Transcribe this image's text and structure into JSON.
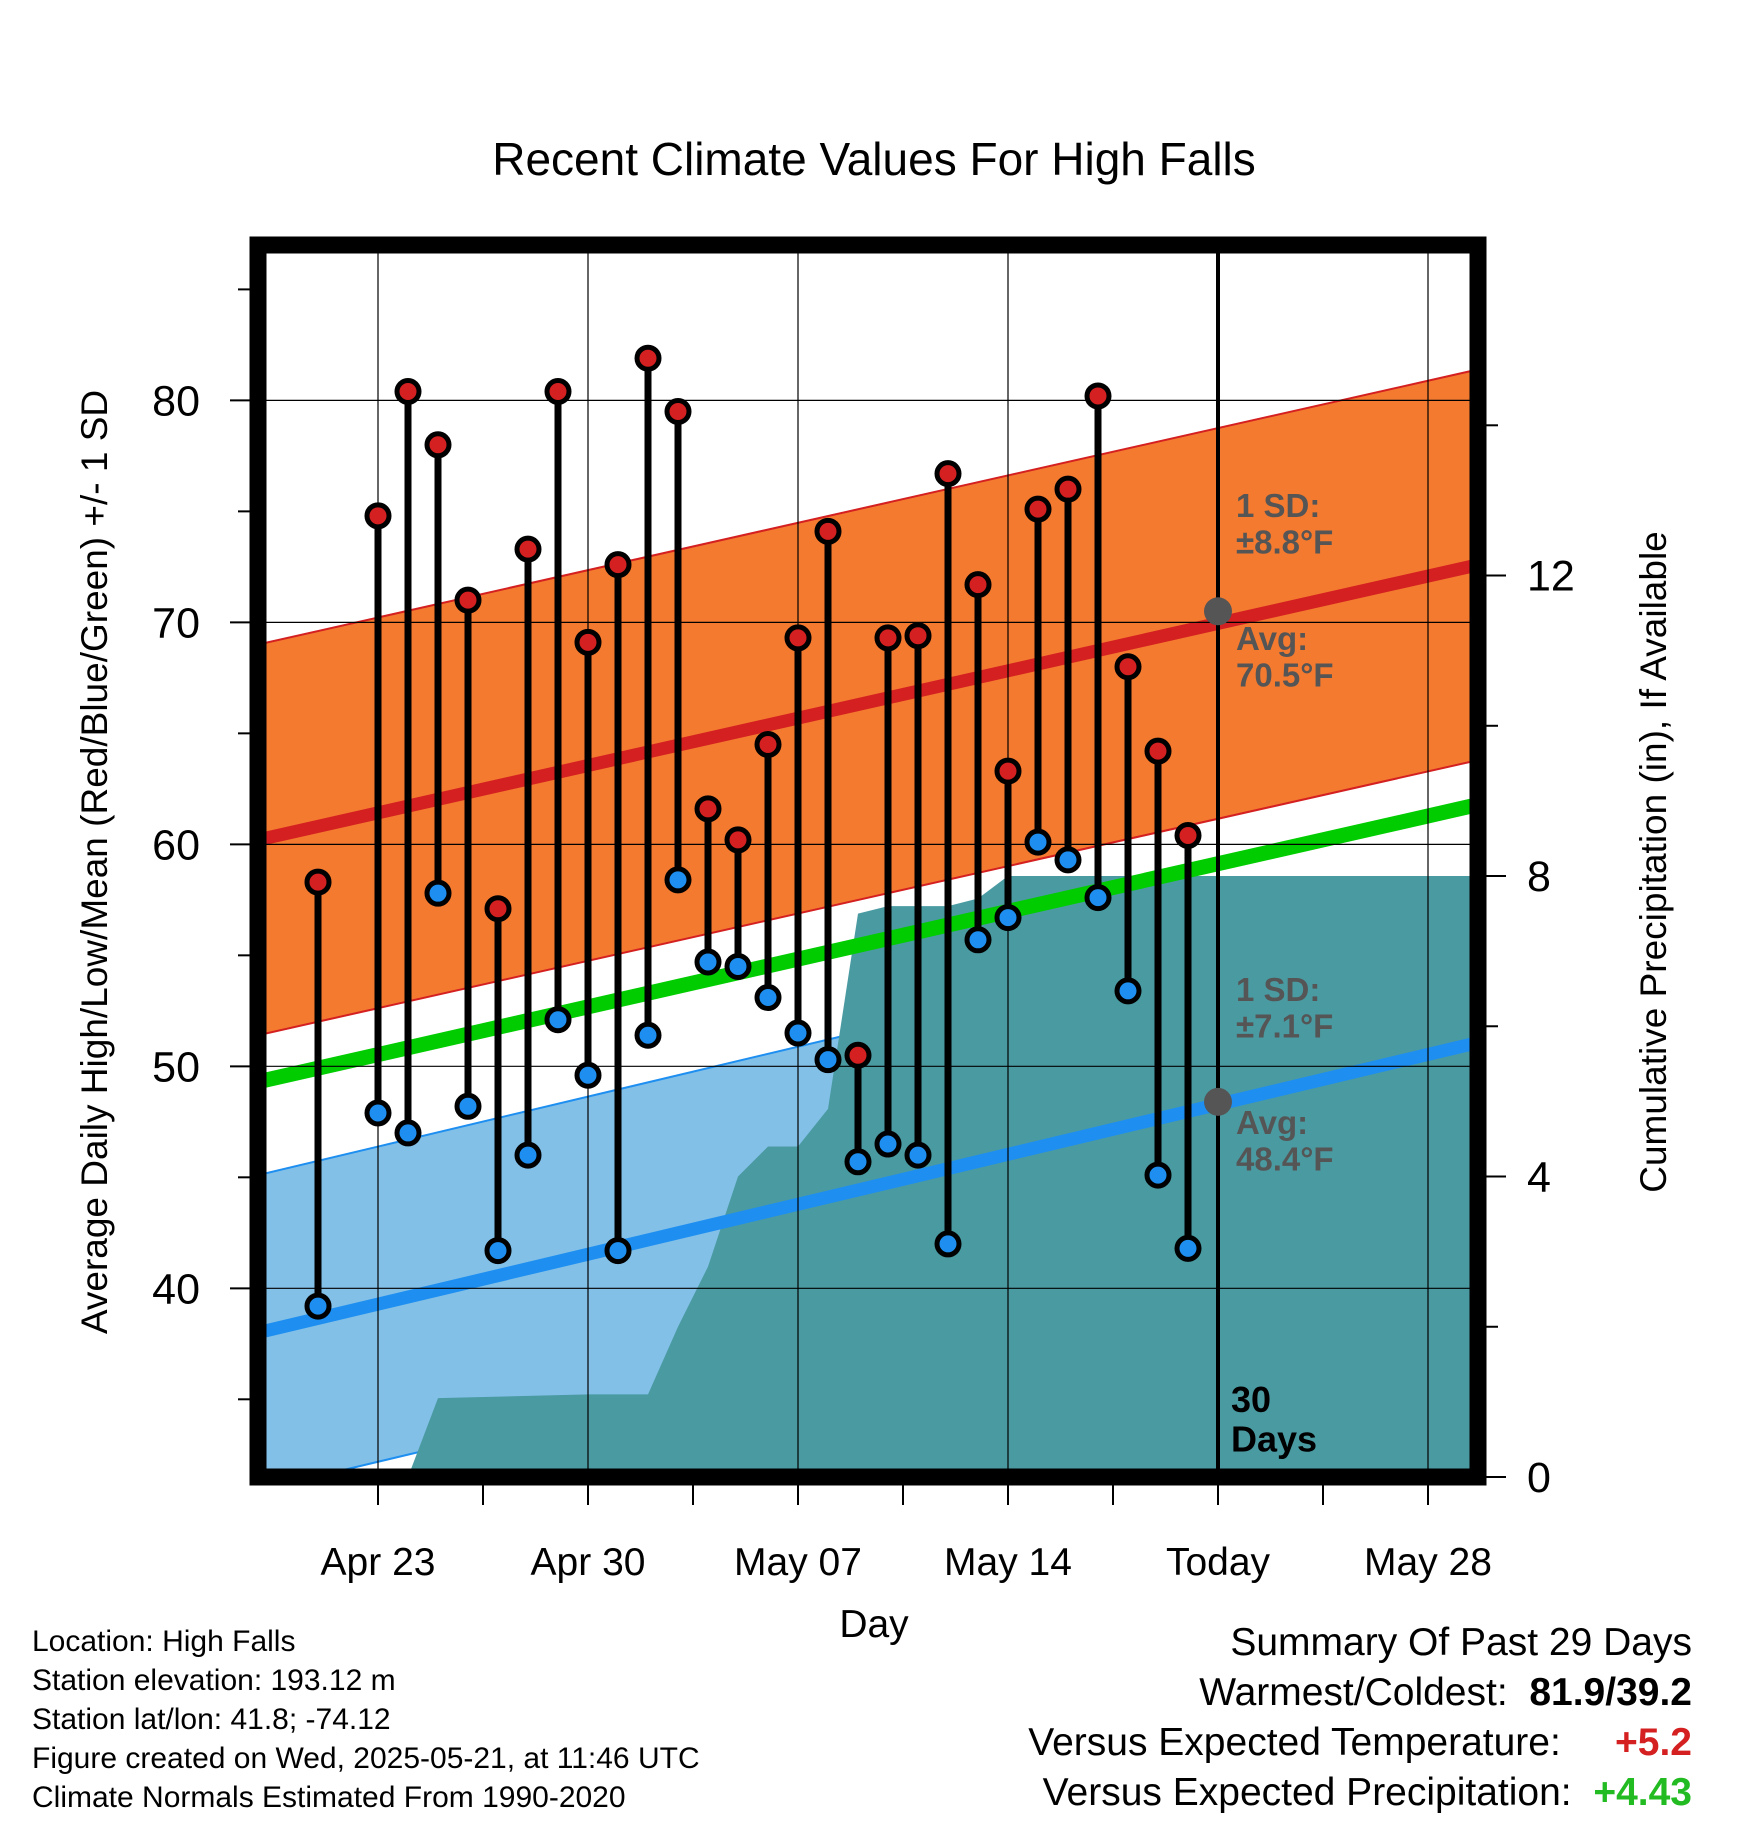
{
  "chart_data": {
    "type": "line",
    "title": "Recent Climate Values For High Falls",
    "xlabel": "Day",
    "ylabel": "Average Daily High/Low/Mean (Red/Blue/Green) +/- 1 SD",
    "ylabel_right": "Cumulative Precipitation (in), If Available",
    "ylim": [
      31.5,
      87
    ],
    "y_ticks": [
      "40",
      "50",
      "60",
      "70",
      "80"
    ],
    "y2lim": [
      0,
      16.4
    ],
    "y2_ticks": [
      "0",
      "4",
      "8",
      "12"
    ],
    "xlim": [
      "2025-04-19",
      "2025-05-31"
    ],
    "x_ticks": [
      {
        "date": "2025-04-23",
        "label": "Apr 23"
      },
      {
        "date": "2025-04-30",
        "label": "Apr 30"
      },
      {
        "date": "2025-05-07",
        "label": "May 07"
      },
      {
        "date": "2025-05-14",
        "label": "May 14"
      },
      {
        "date": "2025-05-21",
        "label": "Today"
      },
      {
        "date": "2025-05-28",
        "label": "May 28"
      }
    ],
    "grid": true,
    "colors": {
      "high": "#d42020",
      "low": "#1e8ff0",
      "mean": "#00cc00",
      "high_band": "#f47a30",
      "low_band": "#82c0e8",
      "precip": "#4a9aa2"
    },
    "normals": {
      "x": [
        "2025-04-19",
        "2025-05-31"
      ],
      "high_avg": [
        60.2,
        73.0
      ],
      "high_sd": 8.8,
      "low_avg": [
        38.0,
        51.5
      ],
      "low_sd": 7.1,
      "mean_avg": [
        49.3,
        62.2
      ]
    },
    "today": {
      "date": "2025-05-21",
      "label": "30 Days",
      "label_lines": [
        "30",
        "Days"
      ],
      "high_avg": 70.5,
      "low_avg": 48.4,
      "high_sd_label": [
        "1 SD:",
        "±8.8°F"
      ],
      "high_avg_label": [
        "Avg:",
        "70.5°F"
      ],
      "low_sd_label": [
        "1 SD:",
        "±7.1°F"
      ],
      "low_avg_label": [
        "Avg:",
        "48.4°F"
      ]
    },
    "series": [
      {
        "x": [
          "2025-04-21",
          "2025-04-23",
          "2025-04-24",
          "2025-04-25",
          "2025-04-26",
          "2025-04-27",
          "2025-04-28",
          "2025-04-29",
          "2025-04-30",
          "2025-05-01",
          "2025-05-02",
          "2025-05-03",
          "2025-05-04",
          "2025-05-05",
          "2025-05-06",
          "2025-05-07",
          "2025-05-08",
          "2025-05-09",
          "2025-05-10",
          "2025-05-11",
          "2025-05-12",
          "2025-05-13",
          "2025-05-14",
          "2025-05-15",
          "2025-05-16",
          "2025-05-17",
          "2025-05-18",
          "2025-05-19",
          "2025-05-20"
        ],
        "high": [
          58.3,
          74.8,
          80.4,
          78.0,
          71.0,
          57.1,
          73.3,
          80.4,
          69.1,
          72.6,
          81.9,
          79.5,
          61.6,
          60.2,
          64.5,
          69.3,
          74.1,
          50.5,
          69.3,
          69.4,
          76.7,
          71.7,
          63.3,
          75.1,
          76.0,
          80.2,
          68.0,
          64.2,
          60.4
        ],
        "low": [
          39.2,
          47.9,
          47.0,
          57.8,
          48.2,
          41.7,
          46.0,
          52.1,
          49.6,
          41.7,
          51.4,
          58.4,
          54.7,
          54.5,
          53.1,
          51.5,
          50.3,
          45.7,
          46.5,
          46.0,
          42.0,
          55.7,
          56.7,
          60.1,
          59.3,
          57.6,
          53.4,
          45.1,
          41.8
        ]
      }
    ],
    "precip": {
      "x": [
        "2025-04-24",
        "2025-04-25",
        "2025-04-30",
        "2025-05-02",
        "2025-05-03",
        "2025-05-04",
        "2025-05-05",
        "2025-05-06",
        "2025-05-07",
        "2025-05-08",
        "2025-05-09",
        "2025-05-10",
        "2025-05-12",
        "2025-05-13",
        "2025-05-14",
        "2025-05-16",
        "2025-05-21",
        "2025-05-31"
      ],
      "values": [
        0.0,
        1.05,
        1.1,
        1.1,
        2.0,
        2.8,
        4.0,
        4.4,
        4.4,
        4.9,
        7.5,
        7.6,
        7.6,
        7.7,
        8.0,
        8.0,
        8.0,
        8.0
      ]
    }
  },
  "info": {
    "location": "Location: High Falls",
    "elevation": "Station elevation: 193.12 m",
    "latlon": "Station lat/lon: 41.8; -74.12",
    "created": "Figure created on Wed, 2025-05-21, at 11:46 UTC",
    "normals": "Climate Normals Estimated From 1990-2020"
  },
  "summary": {
    "heading": "Summary Of Past 29 Days",
    "warm_cold_label": "Warmest/Coldest:",
    "warm_cold_value": "81.9/39.2",
    "temp_label": "Versus Expected Temperature:",
    "temp_value": "+5.2",
    "temp_color": "#d42020",
    "precip_label": "Versus Expected Precipitation:",
    "precip_value": "+4.43",
    "precip_color": "#22bb22"
  }
}
